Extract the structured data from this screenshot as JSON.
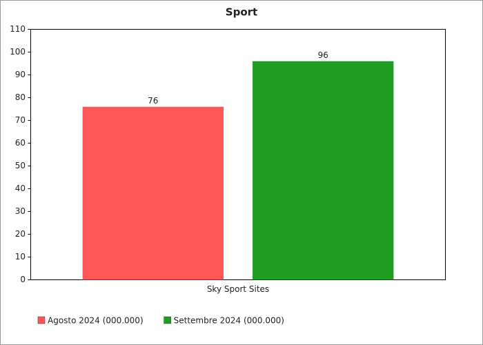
{
  "chart_data": {
    "type": "bar",
    "title": "Sport",
    "categories": [
      "Sky Sport Sites"
    ],
    "series": [
      {
        "name": "Agosto 2024 (000.000)",
        "color": "#ff5757",
        "values": [
          76
        ]
      },
      {
        "name": "Settembre 2024 (000.000)",
        "color": "#1f9e22",
        "values": [
          96
        ]
      }
    ],
    "ylim": [
      0,
      110
    ],
    "yticks": [
      0,
      10,
      20,
      30,
      40,
      50,
      60,
      70,
      80,
      90,
      100,
      110
    ],
    "legend": "bottom-left"
  }
}
